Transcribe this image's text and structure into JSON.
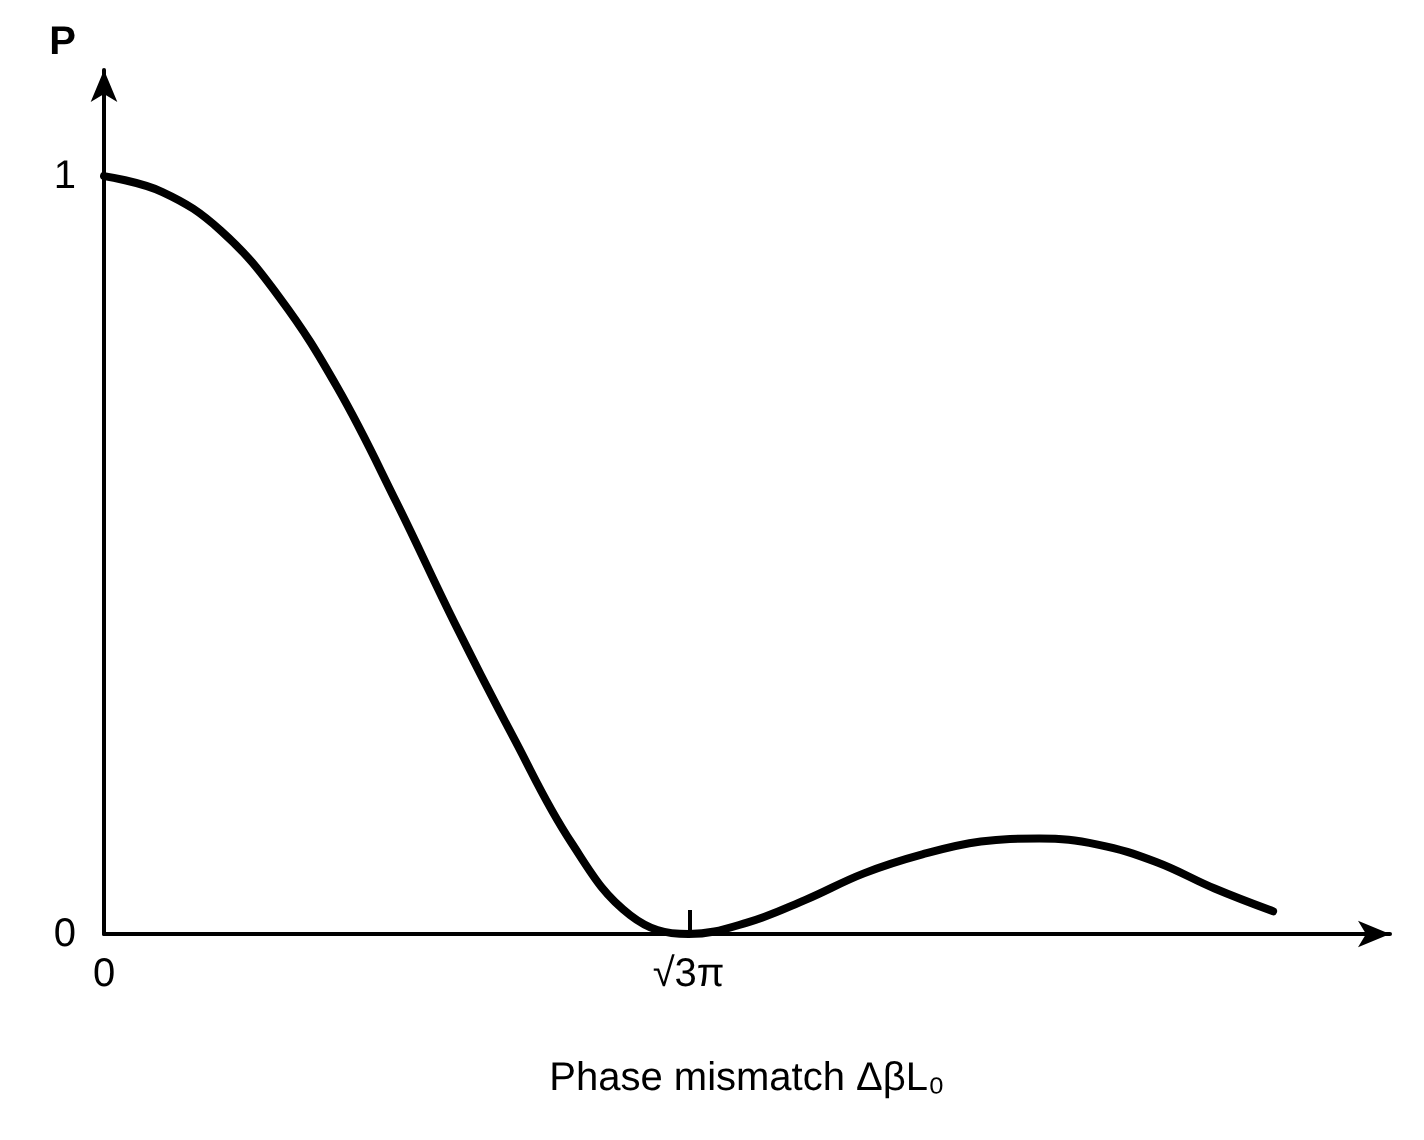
{
  "chart_data": {
    "type": "line",
    "xlabel": "Phase mismatch ΔβL₀",
    "ylabel": "P",
    "categories": [
      "0",
      null,
      null,
      null,
      null,
      null,
      null,
      null,
      null,
      null,
      "√3π",
      null,
      null,
      null,
      null,
      null,
      null,
      null,
      null,
      null,
      null,
      null,
      null
    ],
    "series": [
      {
        "color": "#000000",
        "values": [
          1,
          0.979,
          0.928,
          0.84,
          0.72,
          0.57,
          0.41,
          0.26,
          0.12,
          0.025,
          0,
          0.015,
          0.045,
          0.08,
          0.105,
          0.122,
          0.126,
          0.118,
          0.095,
          0.06,
          0.03,
          null,
          null
        ]
      }
    ],
    "ylim": [
      0,
      1.14
    ],
    "yticks": [
      0,
      1
    ],
    "grid": false,
    "marker": "none",
    "line_style": "solid"
  }
}
